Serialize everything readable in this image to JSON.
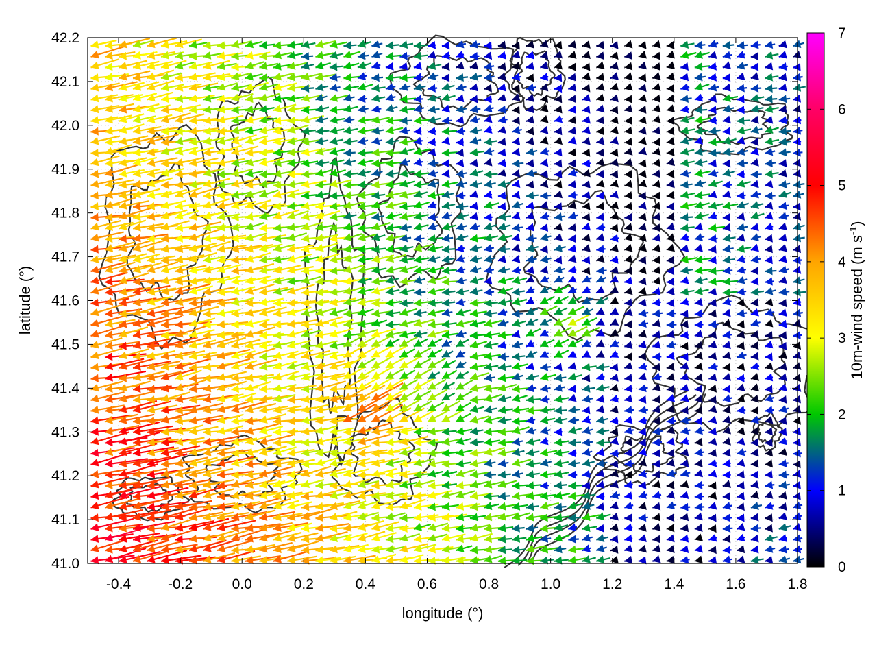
{
  "chart_data": {
    "type": "vector-field",
    "xlabel": "longitude (°)",
    "ylabel": "latitude (°)",
    "xlim": [
      -0.5,
      1.8
    ],
    "ylim": [
      41.0,
      42.2
    ],
    "xticks": [
      "-0.4",
      "-0.2",
      "0.0",
      "0.2",
      "0.4",
      "0.6",
      "0.8",
      "1.0",
      "1.2",
      "1.4",
      "1.6",
      "1.8"
    ],
    "yticks": [
      "41.0",
      "41.1",
      "41.2",
      "41.3",
      "41.4",
      "41.5",
      "41.6",
      "41.7",
      "41.8",
      "41.9",
      "42.0",
      "42.1",
      "42.2"
    ],
    "colorbar": {
      "label_prefix": "10m-wind speed (m s",
      "label_exp": "-1",
      "label_suffix": ")",
      "range": [
        0,
        7
      ],
      "ticks": [
        "0",
        "1",
        "2",
        "3",
        "4",
        "5",
        "6",
        "7"
      ],
      "colors": [
        "#000000",
        "#0000ff",
        "#00c800",
        "#ffff00",
        "#ffa500",
        "#ff0000",
        "#ff00ff"
      ]
    },
    "wind_field_description": "westward (easterly) winds; strongest 4-7 m s-1 in the west at low latitudes, weak 0-2 m s-1 in the southeast",
    "contour_color": "#333333",
    "grid": true
  }
}
